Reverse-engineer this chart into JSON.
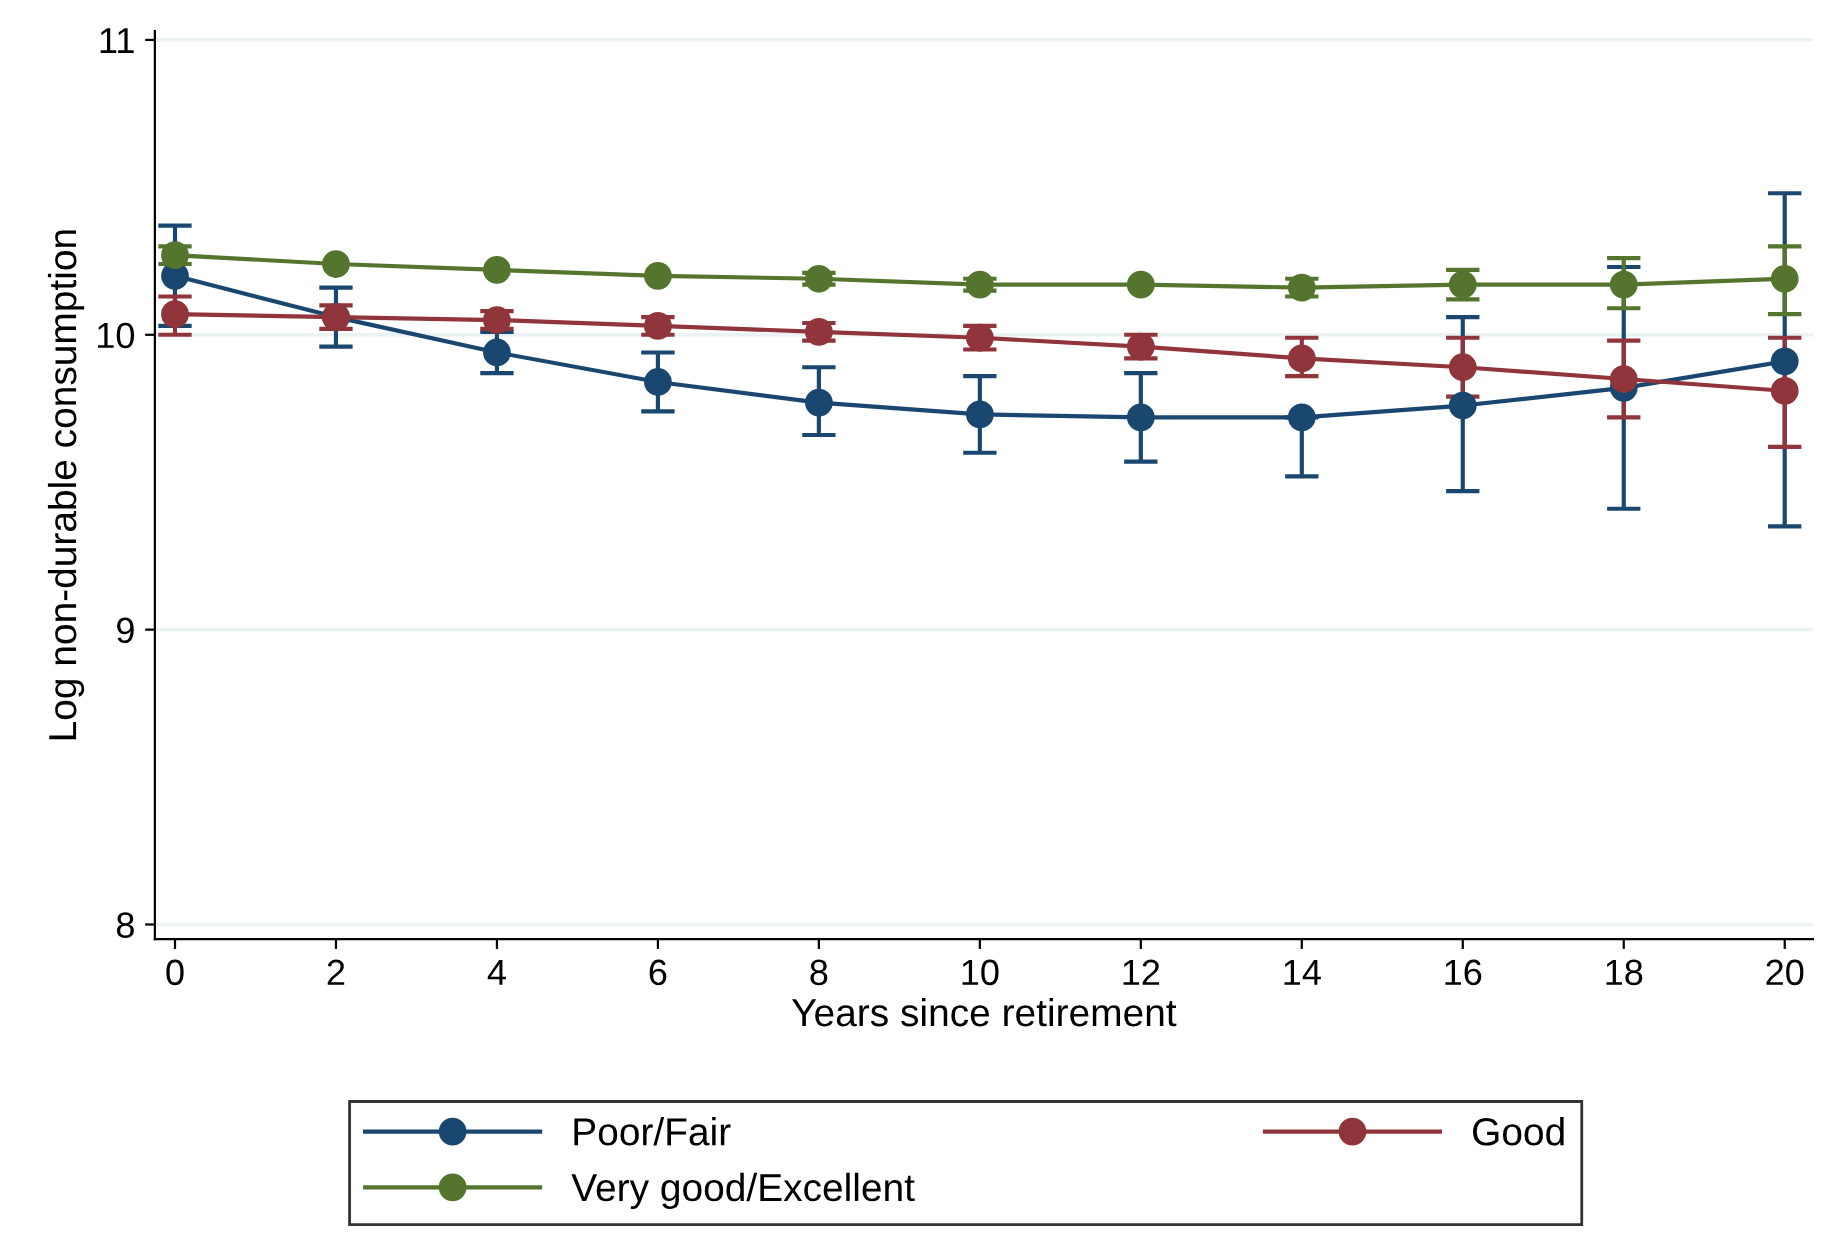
{
  "chart_data": {
    "type": "line",
    "xlabel": "Years since retirement",
    "ylabel": "Log non-durable consumption",
    "x": [
      0,
      2,
      4,
      6,
      8,
      10,
      12,
      14,
      16,
      18,
      20
    ],
    "xlim": [
      -0.25,
      20.35
    ],
    "ylim": [
      7.95,
      11.03
    ],
    "xticks": [
      0,
      2,
      4,
      6,
      8,
      10,
      12,
      14,
      16,
      18,
      20
    ],
    "yticks": [
      8,
      9,
      10,
      11
    ],
    "grid": "y",
    "legend": "bottom",
    "marker": "circle",
    "line_style": "solid",
    "series": [
      {
        "name": "Poor/Fair",
        "color": "#1a476f",
        "values": [
          10.2,
          10.06,
          9.94,
          9.84,
          9.77,
          9.73,
          9.72,
          9.72,
          9.76,
          9.82,
          9.91
        ],
        "errors": [
          [
            10.03,
            10.37
          ],
          [
            9.96,
            10.16
          ],
          [
            9.87,
            10.01
          ],
          [
            9.74,
            9.94
          ],
          [
            9.66,
            9.89
          ],
          [
            9.6,
            9.86
          ],
          [
            9.57,
            9.87
          ],
          [
            9.52,
            9.72
          ],
          [
            9.47,
            10.06
          ],
          [
            9.41,
            10.23
          ],
          [
            9.35,
            10.48
          ]
        ]
      },
      {
        "name": "Good",
        "color": "#90353b",
        "values": [
          10.07,
          10.06,
          10.05,
          10.03,
          10.01,
          9.99,
          9.96,
          9.92,
          9.89,
          9.85,
          9.81
        ],
        "errors": [
          [
            10.0,
            10.13
          ],
          [
            10.02,
            10.1
          ],
          [
            10.02,
            10.08
          ],
          [
            10.0,
            10.06
          ],
          [
            9.98,
            10.04
          ],
          [
            9.95,
            10.03
          ],
          [
            9.92,
            10.0
          ],
          [
            9.86,
            9.99
          ],
          [
            9.79,
            9.99
          ],
          [
            9.72,
            9.98
          ],
          [
            9.62,
            9.99
          ]
        ]
      },
      {
        "name": "Very good/Excellent",
        "color": "#55752f",
        "values": [
          10.27,
          10.24,
          10.22,
          10.2,
          10.19,
          10.17,
          10.17,
          10.16,
          10.17,
          10.17,
          10.19
        ],
        "errors": [
          [
            10.24,
            10.3
          ],
          null,
          null,
          null,
          [
            10.17,
            10.21
          ],
          [
            10.15,
            10.19
          ],
          null,
          [
            10.13,
            10.19
          ],
          [
            10.12,
            10.22
          ],
          [
            10.09,
            10.26
          ],
          [
            10.07,
            10.3
          ]
        ]
      }
    ]
  }
}
